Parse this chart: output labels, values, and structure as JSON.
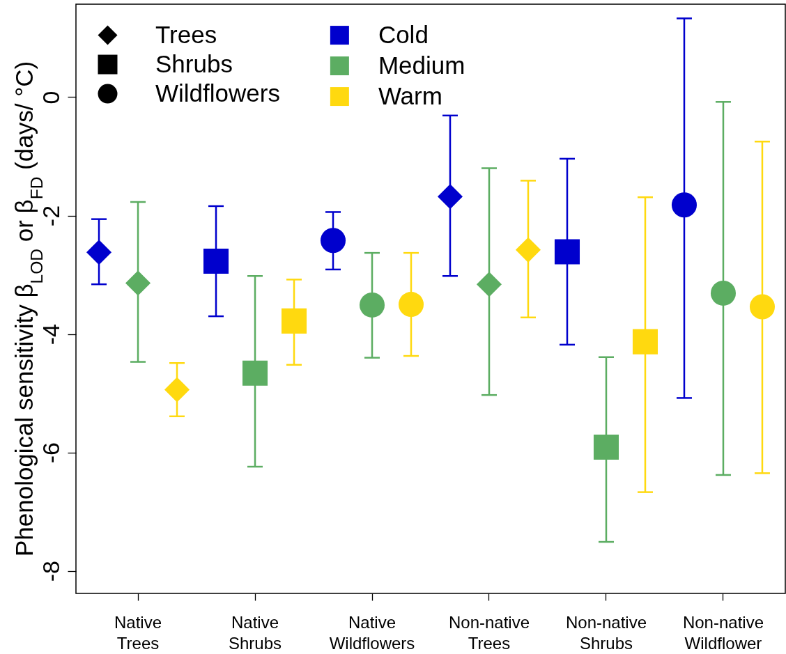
{
  "chart_data": {
    "type": "scatter",
    "ylabel": "Phenological sensitivity β$_{LOD}$ or β$_{FD}$ (days/ °C)",
    "categories": [
      "Native Trees",
      "Native Shrubs",
      "Native Wildflowers",
      "Non-native Trees",
      "Non-native Shrubs",
      "Non-native Wildflower"
    ],
    "series": [
      {
        "name": "Cold",
        "color": "#0000cd",
        "marker": [
          "diamond",
          "square",
          "circle",
          "diamond",
          "square",
          "circle"
        ],
        "values": [
          -2.62,
          -2.77,
          -2.42,
          -1.68,
          -2.61,
          -1.82
        ],
        "errors": [
          [
            -3.16,
            -2.06
          ],
          [
            -3.7,
            -1.84
          ],
          [
            -2.91,
            -1.94
          ],
          [
            -3.02,
            -0.31
          ],
          [
            -4.18,
            -1.04
          ],
          [
            -5.08,
            1.33
          ]
        ]
      },
      {
        "name": "Medium",
        "color": "#5cad62",
        "marker": [
          "diamond",
          "square",
          "circle",
          "diamond",
          "square",
          "circle"
        ],
        "values": [
          -3.14,
          -4.66,
          -3.51,
          -3.16,
          -5.91,
          -3.31
        ],
        "errors": [
          [
            -4.47,
            -1.77
          ],
          [
            -6.24,
            -3.02
          ],
          [
            -4.4,
            -2.63
          ],
          [
            -5.03,
            -1.2
          ],
          [
            -7.51,
            -4.39
          ],
          [
            -6.38,
            -0.08
          ]
        ]
      },
      {
        "name": "Warm",
        "color": "#ffd90f",
        "marker": [
          "diamond",
          "square",
          "circle",
          "diamond",
          "square",
          "circle"
        ],
        "values": [
          -4.94,
          -3.78,
          -3.5,
          -2.58,
          -4.13,
          -3.54
        ],
        "errors": [
          [
            -5.39,
            -4.49
          ],
          [
            -4.52,
            -3.08
          ],
          [
            -4.37,
            -2.63
          ],
          [
            -3.72,
            -1.41
          ],
          [
            -6.67,
            -1.69
          ],
          [
            -6.35,
            -0.75
          ]
        ]
      },
      {
        "name": "Trees",
        "color": "#000000",
        "marker": "diamond",
        "values": [
          null,
          null,
          null,
          null,
          null,
          null
        ]
      },
      {
        "name": "Shrubs",
        "color": "#000000",
        "marker": "square",
        "values": [
          null,
          null,
          null,
          null,
          null,
          null
        ]
      },
      {
        "name": "Wildflowers",
        "color": "#000000",
        "marker": "circle",
        "values": [
          null,
          null,
          null,
          null,
          null,
          null
        ]
      }
    ],
    "ylim": [
      -8.38,
      1.57
    ],
    "yticks": [
      -8,
      -6,
      -4,
      -2,
      0
    ],
    "legend": "top left"
  }
}
